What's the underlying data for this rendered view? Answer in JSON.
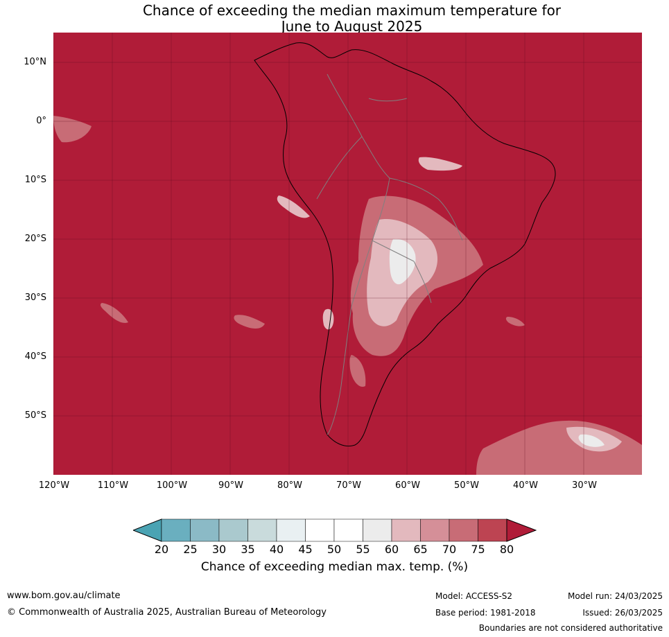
{
  "title_line1": "Chance of exceeding the median maximum temperature for",
  "title_line2": "June to August 2025",
  "lat_labels": [
    "10°N",
    "0°",
    "10°S",
    "20°S",
    "30°S",
    "40°S",
    "50°S"
  ],
  "lon_labels": [
    "120°W",
    "110°W",
    "100°W",
    "90°W",
    "80°W",
    "70°W",
    "60°W",
    "50°W",
    "40°W",
    "30°W"
  ],
  "colorbar": {
    "label": "Chance of exceeding median max. temp. (%)",
    "ticks": [
      "20",
      "25",
      "30",
      "35",
      "40",
      "45",
      "50",
      "55",
      "60",
      "65",
      "70",
      "75",
      "80"
    ],
    "colors": [
      "#4aa3b3",
      "#6aafbf",
      "#8bbac6",
      "#aac9ce",
      "#c9dbdc",
      "#e9f0f2",
      "#ffffff",
      "#ffffff",
      "#ececec",
      "#e3b9be",
      "#d58f98",
      "#c86c76",
      "#bd4452",
      "#b01c38"
    ]
  },
  "colors": {
    "high": "#b01c38",
    "mid": "#c86c76",
    "low": "#e3b9be",
    "land_border": "#000000",
    "country_border": "#808080"
  },
  "footer": {
    "url": "www.bom.gov.au/climate",
    "copyright": "© Commonwealth of Australia 2025, Australian Bureau of Meteorology",
    "model": "Model: ACCESS-S2",
    "base_period": "Base period: 1981-2018",
    "model_run": "Model run: 24/03/2025",
    "issued": "Issued: 26/03/2025",
    "disclaimer": "Boundaries are not considered authoritative"
  }
}
